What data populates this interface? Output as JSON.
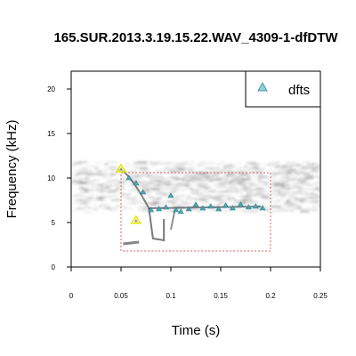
{
  "chart_data": {
    "type": "scatter",
    "title": "165.SUR.2013.3.19.15.22.WAV_4309-1-dfDTW",
    "xlabel": "Time (s)",
    "ylabel": "Frequency (kHz)",
    "xlim": [
      0,
      0.25
    ],
    "ylim": [
      0,
      22
    ],
    "x_ticks": [
      0,
      0.05,
      0.1,
      0.15,
      0.2,
      0.25
    ],
    "x_tick_labels": [
      "0",
      "0.05",
      "0.1",
      "0.15",
      "0.2",
      "0.25"
    ],
    "y_ticks": [
      0,
      5,
      10,
      15,
      20
    ],
    "y_tick_labels": [
      "0",
      "5",
      "10",
      "15",
      "20"
    ],
    "legend": {
      "position": "top-right",
      "entries": [
        "dfts"
      ]
    },
    "selection_box": {
      "x": [
        0.05,
        0.2
      ],
      "y": [
        1.8,
        10.6
      ],
      "color": "#e06666"
    },
    "start_end_markers": [
      {
        "x": 0.05,
        "y": 11.0
      },
      {
        "x": 0.065,
        "y": 5.2
      }
    ],
    "series": [
      {
        "name": "dfts",
        "marker_color": "#4aa8b8",
        "points": [
          {
            "x": 0.058,
            "y": 10.0
          },
          {
            "x": 0.065,
            "y": 9.4
          },
          {
            "x": 0.072,
            "y": 8.4
          },
          {
            "x": 0.08,
            "y": 6.4
          },
          {
            "x": 0.088,
            "y": 6.5
          },
          {
            "x": 0.095,
            "y": 6.7
          },
          {
            "x": 0.1,
            "y": 8.0
          },
          {
            "x": 0.105,
            "y": 6.4
          },
          {
            "x": 0.11,
            "y": 6.2
          },
          {
            "x": 0.118,
            "y": 6.5
          },
          {
            "x": 0.125,
            "y": 7.0
          },
          {
            "x": 0.132,
            "y": 6.6
          },
          {
            "x": 0.14,
            "y": 6.8
          },
          {
            "x": 0.148,
            "y": 6.5
          },
          {
            "x": 0.155,
            "y": 6.9
          },
          {
            "x": 0.162,
            "y": 6.6
          },
          {
            "x": 0.17,
            "y": 7.0
          },
          {
            "x": 0.178,
            "y": 6.7
          },
          {
            "x": 0.185,
            "y": 6.8
          },
          {
            "x": 0.192,
            "y": 6.6
          }
        ]
      }
    ]
  },
  "colors": {
    "legend_marker": "#8ecfdc",
    "start_end_marker": "#e8e800",
    "spectrogram": "#555555"
  }
}
